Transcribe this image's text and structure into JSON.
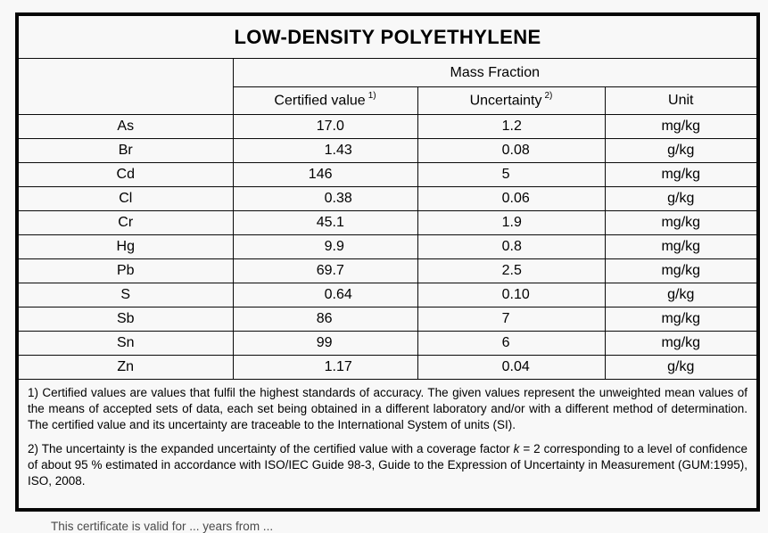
{
  "page": {
    "background": "#f8f8f8",
    "border_color": "#060606"
  },
  "title": "LOW-DENSITY POLYETHYLENE",
  "table": {
    "group_header": "Mass Fraction",
    "columns": [
      {
        "label": "",
        "sup": ""
      },
      {
        "label": "Certified value",
        "sup": "1)"
      },
      {
        "label": "Uncertainty",
        "sup": "2)"
      },
      {
        "label": "Unit",
        "sup": ""
      }
    ],
    "rows": [
      {
        "element": "As",
        "value": "17.0",
        "uncertainty": "1.2",
        "unit": "mg/kg"
      },
      {
        "element": "Br",
        "value": "1.43",
        "uncertainty": "0.08",
        "unit": "g/kg"
      },
      {
        "element": "Cd",
        "value": "146",
        "uncertainty": "5",
        "unit": "mg/kg"
      },
      {
        "element": "Cl",
        "value": "0.38",
        "uncertainty": "0.06",
        "unit": "g/kg"
      },
      {
        "element": "Cr",
        "value": "45.1",
        "uncertainty": "1.9",
        "unit": "mg/kg"
      },
      {
        "element": "Hg",
        "value": "9.9",
        "uncertainty": "0.8",
        "unit": "mg/kg"
      },
      {
        "element": "Pb",
        "value": "69.7",
        "uncertainty": "2.5",
        "unit": "mg/kg"
      },
      {
        "element": "S",
        "value": "0.64",
        "uncertainty": "0.10",
        "unit": "g/kg"
      },
      {
        "element": "Sb",
        "value": "86",
        "uncertainty": "7",
        "unit": "mg/kg"
      },
      {
        "element": "Sn",
        "value": "99",
        "uncertainty": "6",
        "unit": "mg/kg"
      },
      {
        "element": "Zn",
        "value": "1.17",
        "uncertainty": "0.04",
        "unit": "g/kg"
      }
    ]
  },
  "footnotes": {
    "note1": "1) Certified values are values that fulfil the highest standards of accuracy. The given values represent the unweighted mean values of the means of accepted sets of data, each set being obtained in a different laboratory and/or with a different method of determination. The certified value and its uncertainty are traceable to the International System of units (SI).",
    "note2_before_k": "2) The uncertainty is the expanded uncertainty of the certified value with a coverage factor ",
    "note2_k": "k",
    "note2_after_k": " = 2 corresponding to a level of confidence of about 95 % estimated in accordance with ISO/IEC Guide 98-3, Guide to the Expression of Uncertainty in Measurement (GUM:1995), ISO, 2008."
  },
  "footer": {
    "partial_text": "This certificate is valid for ... years from ..."
  }
}
